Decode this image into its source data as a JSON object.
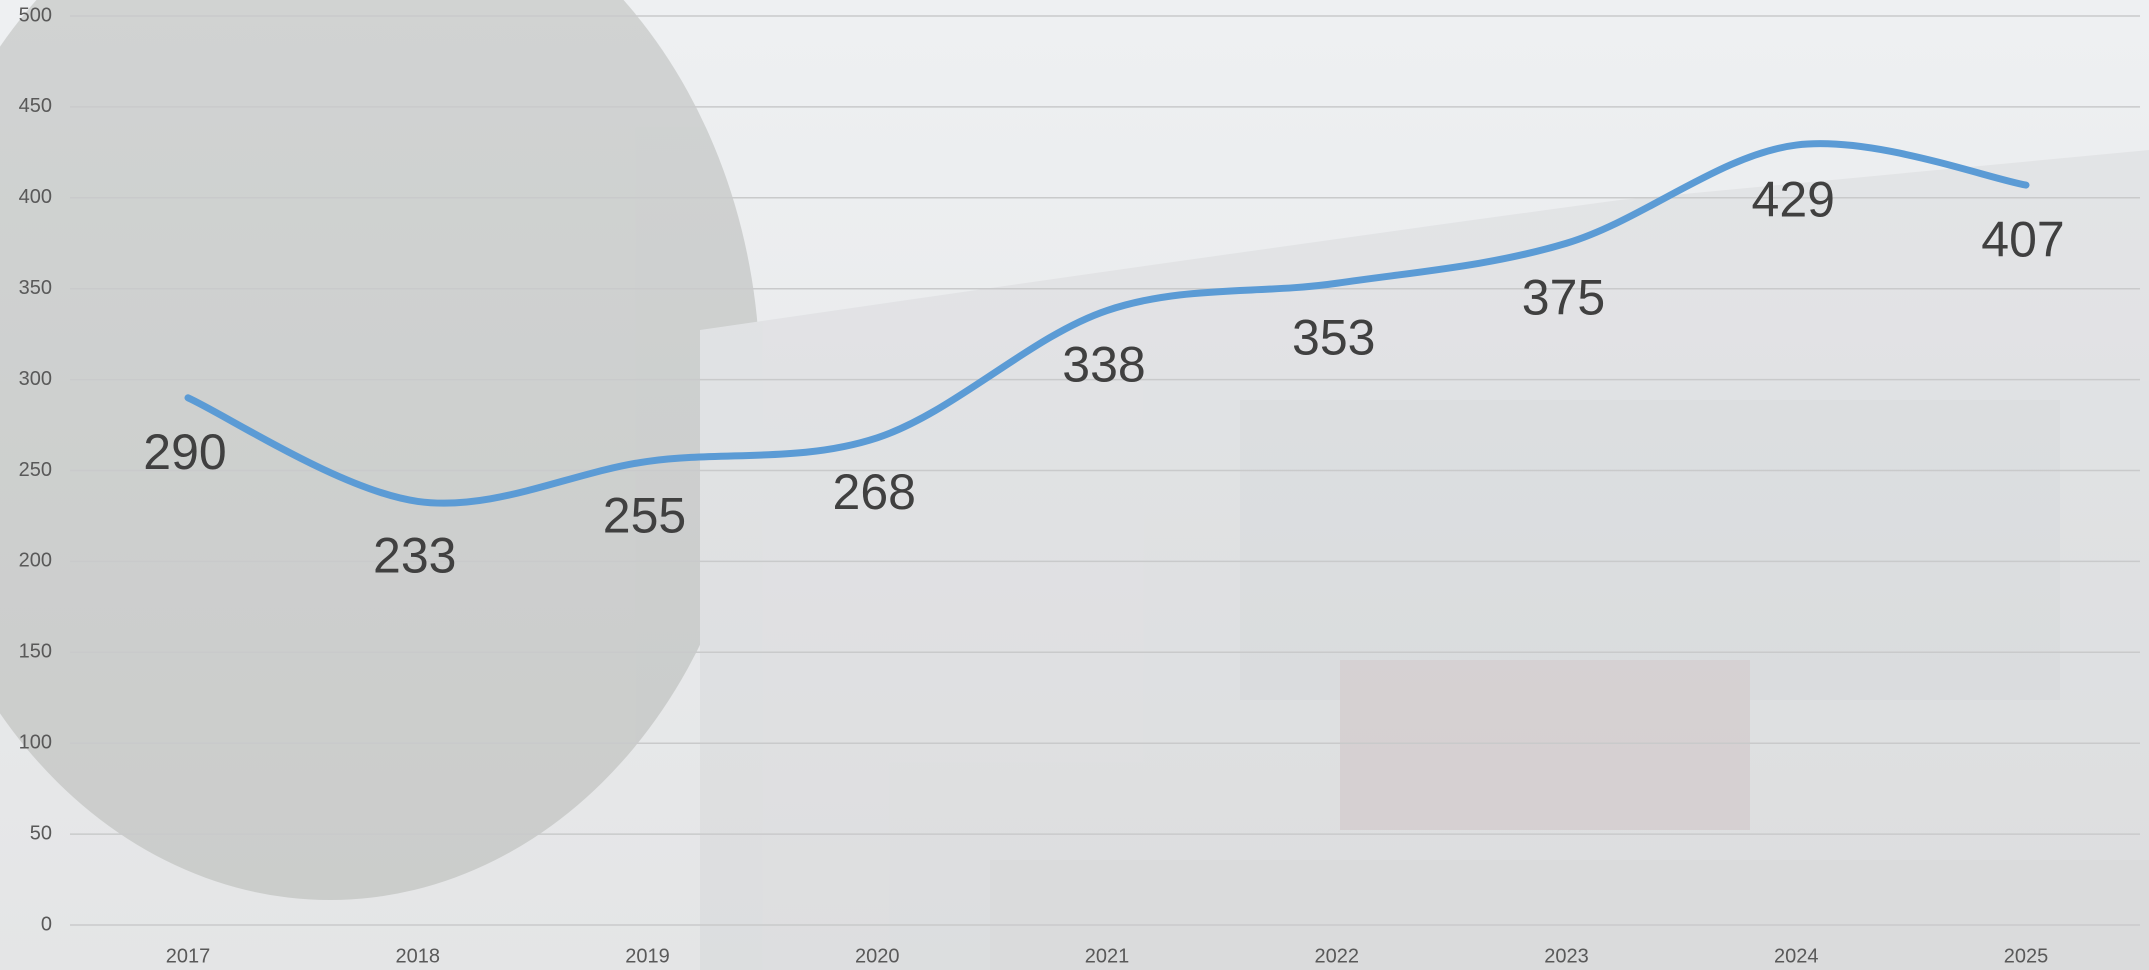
{
  "chart_data": {
    "type": "line",
    "categories": [
      "2017",
      "2018",
      "2019",
      "2020",
      "2021",
      "2022",
      "2023",
      "2024",
      "2025"
    ],
    "values": [
      290,
      233,
      255,
      268,
      338,
      353,
      375,
      429,
      407
    ],
    "color": "#5b9bd5",
    "smooth": true,
    "data_labels": true,
    "ylim": [
      0,
      500
    ],
    "yticks": [
      0,
      50,
      100,
      150,
      200,
      250,
      300,
      350,
      400,
      450,
      500
    ],
    "grid": true
  }
}
